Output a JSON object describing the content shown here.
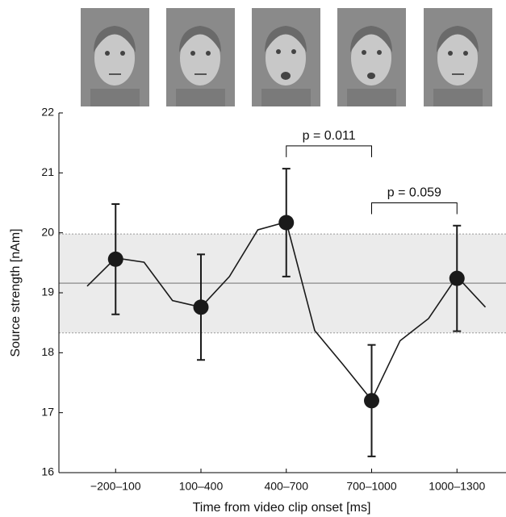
{
  "chart_data": {
    "type": "line",
    "x_label": "Time from video clip onset [ms]",
    "y_label": "Source strength [nAm]",
    "categories": [
      null,
      "−200–100",
      null,
      null,
      "100–400",
      null,
      null,
      "400–700",
      null,
      null,
      "700–1000",
      null,
      null,
      "1000–1300",
      null
    ],
    "series": [
      {
        "color": "#1a1a1a",
        "values": [
          19.11,
          19.58,
          19.51,
          18.87,
          18.76,
          19.27,
          20.05,
          20.18,
          18.37,
          17.8,
          17.21,
          18.2,
          18.57,
          19.27,
          18.76
        ]
      },
      {
        "color": "#1a1a1a",
        "markers": true,
        "values": [
          null,
          19.56,
          null,
          null,
          18.76,
          null,
          null,
          20.17,
          null,
          null,
          17.2,
          null,
          null,
          19.24,
          null
        ],
        "errors": [
          null,
          0.92,
          null,
          null,
          0.88,
          null,
          null,
          0.9,
          null,
          null,
          0.93,
          null,
          null,
          0.88,
          null
        ]
      }
    ],
    "band": [
      18.33,
      19.98
    ],
    "mean_line": 19.16,
    "annotations": [
      {
        "text": "p = 0.011",
        "level": 21.45
      },
      {
        "text": "p = 0.059",
        "level": 20.5
      }
    ],
    "ylim": [
      16,
      22
    ],
    "yticks": [
      16,
      17,
      18,
      19,
      20,
      21,
      22
    ]
  }
}
